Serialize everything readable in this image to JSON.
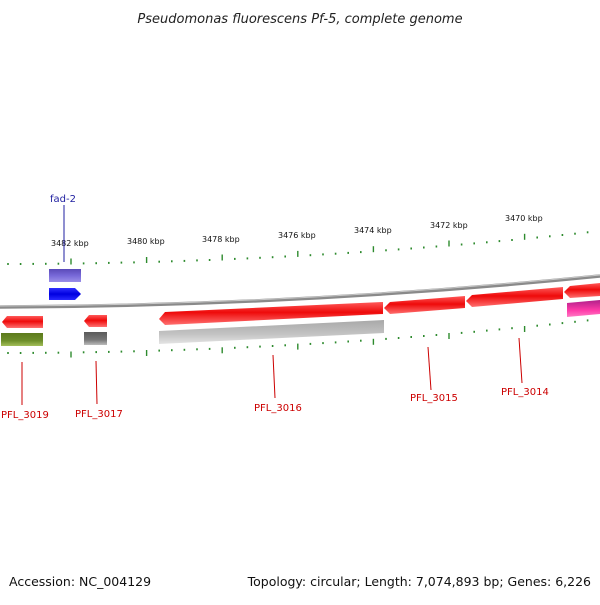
{
  "title": "Pseudomonas fluorescens Pf-5, complete genome",
  "footer": {
    "accession": "Accession: NC_004129",
    "summary": "Topology: circular; Length: 7,074,893 bp; Genes: 6,226"
  },
  "scale": {
    "unit": "kbp",
    "labels": [
      "3482 kbp",
      "3480 kbp",
      "3478 kbp",
      "3476 kbp",
      "3474 kbp",
      "3472 kbp",
      "3470 kbp"
    ]
  },
  "genes": [
    {
      "name": "fad-2",
      "color": "#1f1fa0"
    },
    {
      "name": "PFL_3019",
      "color": "#cc0000"
    },
    {
      "name": "PFL_3017",
      "color": "#cc0000"
    },
    {
      "name": "PFL_3016",
      "color": "#cc0000"
    },
    {
      "name": "PFL_3015",
      "color": "#cc0000"
    },
    {
      "name": "PFL_3014",
      "color": "#cc0000"
    }
  ],
  "colors": {
    "backbone": "#7a7a7a",
    "ticks": "#2e8b2e",
    "cds_forward": "#1010ee",
    "cds_reverse": "#ee1a1a",
    "cog_purple": "#6a5acd",
    "cog_olive": "#6b8e23",
    "cog_gray": "#808080",
    "cog_lightgray": "#bdbdbd",
    "cog_magenta": "#e0309a"
  }
}
